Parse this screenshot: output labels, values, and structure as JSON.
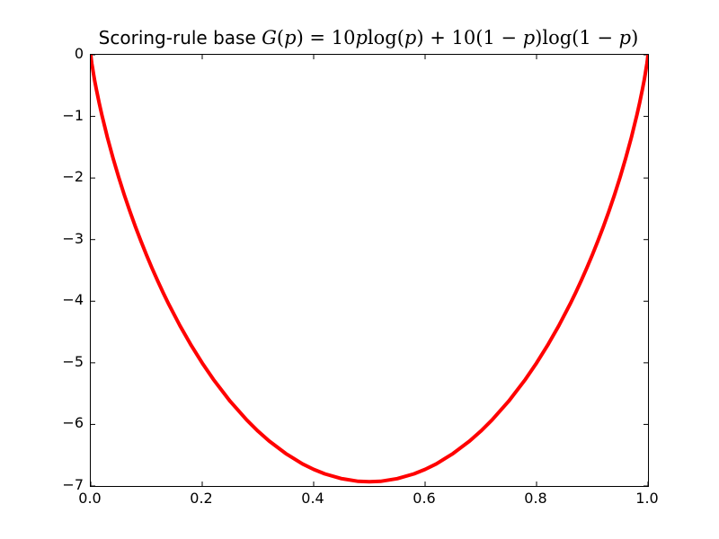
{
  "figure": {
    "background": "#ffffff",
    "frame_color": "#000000",
    "text_color": "#000000",
    "title_prefix": "Scoring-rule base ",
    "title_math": [
      {
        "t": "G",
        "i": true
      },
      {
        "t": "(",
        "i": false
      },
      {
        "t": "p",
        "i": true
      },
      {
        "t": ") = 10",
        "i": false
      },
      {
        "t": "p",
        "i": true
      },
      {
        "t": "log(",
        "i": false
      },
      {
        "t": "p",
        "i": true
      },
      {
        "t": ") + 10(1 − ",
        "i": false
      },
      {
        "t": "p",
        "i": true
      },
      {
        "t": ")log(1 − ",
        "i": false
      },
      {
        "t": "p",
        "i": true
      },
      {
        "t": ")",
        "i": false
      }
    ]
  },
  "chart_data": {
    "type": "line",
    "title": "Scoring-rule base G(p) = 10p log(p) + 10(1 − p)log(1 − p)",
    "xlabel": "",
    "ylabel": "",
    "xlim": [
      0,
      1
    ],
    "ylim": [
      -7,
      0
    ],
    "grid": false,
    "legend": null,
    "tick_direction": "in",
    "tick_length": 5,
    "xtick_values": [
      0.0,
      0.2,
      0.4,
      0.6,
      0.8,
      1.0
    ],
    "xtick_labels": [
      "0.0",
      "0.2",
      "0.4",
      "0.6",
      "0.8",
      "1.0"
    ],
    "ytick_values": [
      0,
      -1,
      -2,
      -3,
      -4,
      -5,
      -6,
      -7
    ],
    "ytick_labels": [
      "0",
      "−1",
      "−2",
      "−3",
      "−4",
      "−5",
      "−6",
      "−7"
    ],
    "series": [
      {
        "name": "G(p) = 10p log(p) + 10(1-p)log(1-p)",
        "color": "#ff0000",
        "linewidth": 4,
        "points": [
          [
            0.0,
            0.0
          ],
          [
            0.001,
            -0.079
          ],
          [
            0.002,
            -0.144
          ],
          [
            0.003,
            -0.204
          ],
          [
            0.005,
            -0.315
          ],
          [
            0.007,
            -0.417
          ],
          [
            0.01,
            -0.56
          ],
          [
            0.015,
            -0.779
          ],
          [
            0.02,
            -0.98
          ],
          [
            0.03,
            -1.347
          ],
          [
            0.04,
            -1.679
          ],
          [
            0.05,
            -1.985
          ],
          [
            0.06,
            -2.27
          ],
          [
            0.07,
            -2.536
          ],
          [
            0.08,
            -2.788
          ],
          [
            0.09,
            -3.025
          ],
          [
            0.1,
            -3.251
          ],
          [
            0.11,
            -3.465
          ],
          [
            0.12,
            -3.669
          ],
          [
            0.13,
            -3.864
          ],
          [
            0.14,
            -4.05
          ],
          [
            0.16,
            -4.397
          ],
          [
            0.18,
            -4.714
          ],
          [
            0.2,
            -5.004
          ],
          [
            0.22,
            -5.269
          ],
          [
            0.25,
            -5.623
          ],
          [
            0.28,
            -5.93
          ],
          [
            0.3,
            -6.109
          ],
          [
            0.32,
            -6.269
          ],
          [
            0.35,
            -6.474
          ],
          [
            0.38,
            -6.641
          ],
          [
            0.4,
            -6.73
          ],
          [
            0.42,
            -6.803
          ],
          [
            0.45,
            -6.881
          ],
          [
            0.48,
            -6.924
          ],
          [
            0.5,
            -6.931
          ],
          [
            0.52,
            -6.924
          ],
          [
            0.55,
            -6.881
          ],
          [
            0.58,
            -6.803
          ],
          [
            0.6,
            -6.73
          ],
          [
            0.62,
            -6.641
          ],
          [
            0.65,
            -6.474
          ],
          [
            0.68,
            -6.269
          ],
          [
            0.7,
            -6.109
          ],
          [
            0.72,
            -5.93
          ],
          [
            0.75,
            -5.623
          ],
          [
            0.78,
            -5.269
          ],
          [
            0.8,
            -5.004
          ],
          [
            0.82,
            -4.714
          ],
          [
            0.84,
            -4.397
          ],
          [
            0.86,
            -4.05
          ],
          [
            0.87,
            -3.864
          ],
          [
            0.88,
            -3.669
          ],
          [
            0.89,
            -3.465
          ],
          [
            0.9,
            -3.251
          ],
          [
            0.91,
            -3.025
          ],
          [
            0.92,
            -2.788
          ],
          [
            0.93,
            -2.536
          ],
          [
            0.94,
            -2.27
          ],
          [
            0.95,
            -1.985
          ],
          [
            0.96,
            -1.679
          ],
          [
            0.97,
            -1.347
          ],
          [
            0.98,
            -0.98
          ],
          [
            0.985,
            -0.779
          ],
          [
            0.99,
            -0.56
          ],
          [
            0.993,
            -0.417
          ],
          [
            0.995,
            -0.315
          ],
          [
            0.997,
            -0.204
          ],
          [
            0.998,
            -0.144
          ],
          [
            0.999,
            -0.079
          ],
          [
            1.0,
            0.0
          ]
        ]
      }
    ]
  }
}
